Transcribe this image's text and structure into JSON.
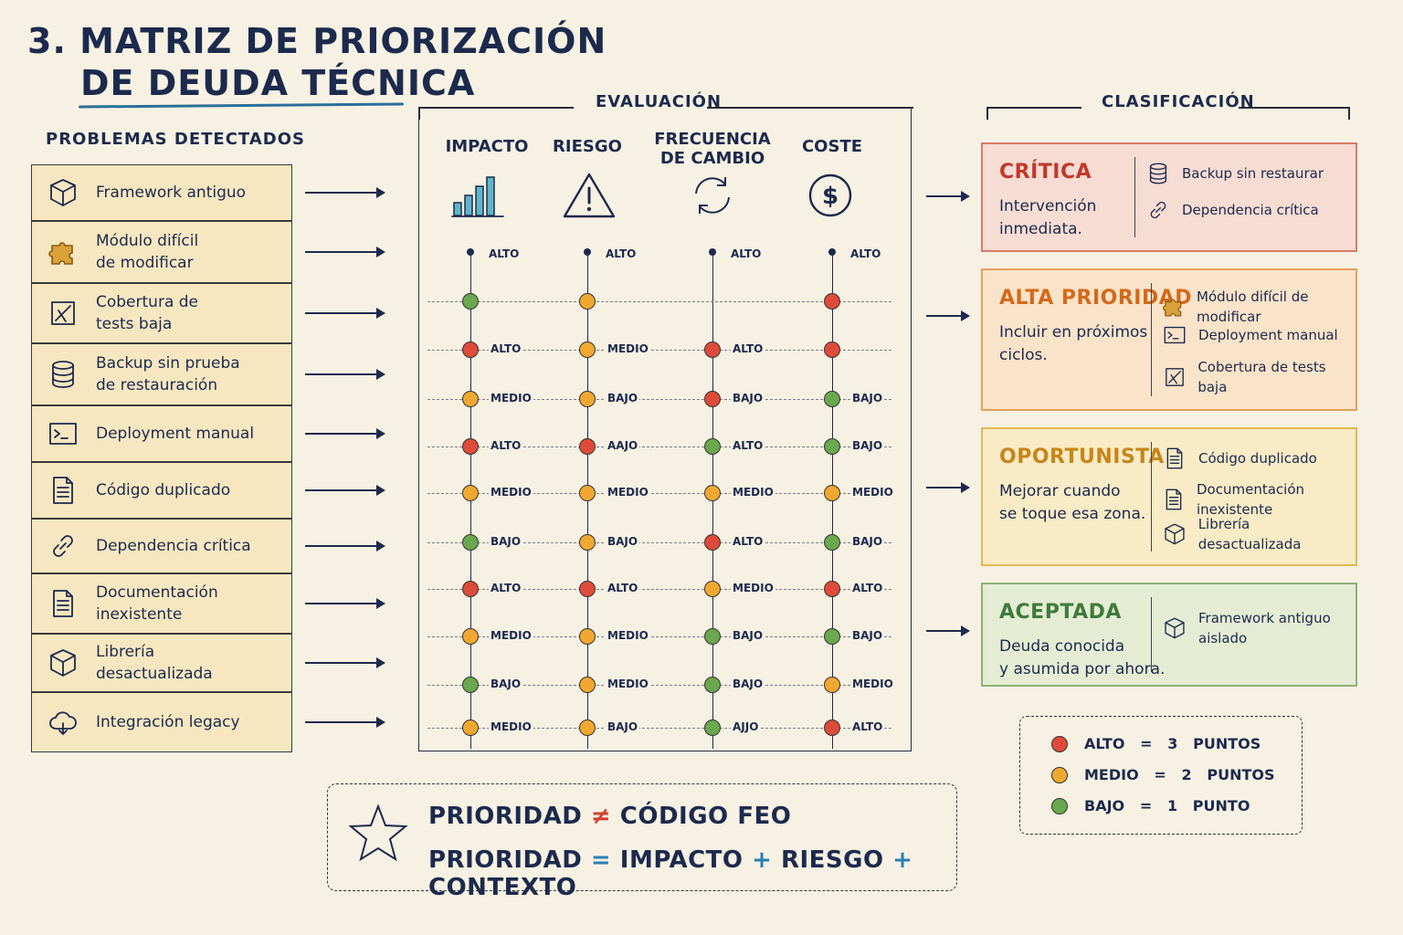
{
  "title": {
    "line1": "3. MATRIZ DE PRIORIZACIÓN",
    "line2": "DE DEUDA TÉCNICA"
  },
  "problems": {
    "header": "PROBLEMAS DETECTADOS",
    "items": [
      {
        "label": "Framework antiguo",
        "icon": "box-icon"
      },
      {
        "label": "Módulo difícil\nde modificar",
        "icon": "puzzle-icon"
      },
      {
        "label": "Cobertura de\ntests baja",
        "icon": "test-icon"
      },
      {
        "label": "Backup sin prueba\nde restauración",
        "icon": "database-icon"
      },
      {
        "label": "Deployment manual",
        "icon": "terminal-icon"
      },
      {
        "label": "Código duplicado",
        "icon": "document-icon"
      },
      {
        "label": "Dependencia crítica",
        "icon": "link-icon"
      },
      {
        "label": "Documentación\ninexistente",
        "icon": "document-icon"
      },
      {
        "label": "Librería\ndesactualizada",
        "icon": "box-icon"
      },
      {
        "label": "Integración legacy",
        "icon": "cloud-icon"
      }
    ]
  },
  "evaluation": {
    "header": "EVALUACIÓN",
    "columns": [
      {
        "label": "IMPACTO",
        "icon": "bar-chart-icon"
      },
      {
        "label": "RIESGO",
        "icon": "warning-icon"
      },
      {
        "label": "FRECUENCIA\nDE CAMBIO",
        "icon": "refresh-icon"
      },
      {
        "label": "COSTE",
        "icon": "dollar-icon"
      }
    ],
    "top_label": "ALTO",
    "rows": [
      [
        {
          "level": "",
          "color": "g"
        },
        {
          "level": "",
          "color": "o"
        },
        {
          "level": "",
          "color": ""
        },
        {
          "level": "",
          "color": "r"
        }
      ],
      [
        {
          "level": "ALTO",
          "color": "r"
        },
        {
          "level": "MEDIO",
          "color": "o"
        },
        {
          "level": "ALTO",
          "color": "r"
        },
        {
          "level": "",
          "color": "r"
        }
      ],
      [
        {
          "level": "MEDIO",
          "color": "o"
        },
        {
          "level": "BAJO",
          "color": "o"
        },
        {
          "level": "BAJO",
          "color": "r"
        },
        {
          "level": "BAJO",
          "color": "g"
        }
      ],
      [
        {
          "level": "ALTO",
          "color": "r"
        },
        {
          "level": "AAJO",
          "color": "r"
        },
        {
          "level": "ALTO",
          "color": "g"
        },
        {
          "level": "BAJO",
          "color": "g"
        }
      ],
      [
        {
          "level": "MEDIO",
          "color": "o"
        },
        {
          "level": "MEDIO",
          "color": "o"
        },
        {
          "level": "MEDIO",
          "color": "o"
        },
        {
          "level": "MEDIO",
          "color": "o"
        }
      ],
      [
        {
          "level": "BAJO",
          "color": "g"
        },
        {
          "level": "BAJO",
          "color": "o"
        },
        {
          "level": "ALTO",
          "color": "r"
        },
        {
          "level": "BAJO",
          "color": "g"
        }
      ],
      [
        {
          "level": "ALTO",
          "color": "r"
        },
        {
          "level": "ALTO",
          "color": "r"
        },
        {
          "level": "MEDIO",
          "color": "o"
        },
        {
          "level": "ALTO",
          "color": "r"
        }
      ],
      [
        {
          "level": "MEDIO",
          "color": "o"
        },
        {
          "level": "MEDIO",
          "color": "o"
        },
        {
          "level": "BAJO",
          "color": "g"
        },
        {
          "level": "BAJO",
          "color": "g"
        }
      ],
      [
        {
          "level": "BAJO",
          "color": "g"
        },
        {
          "level": "MEDIO",
          "color": "o"
        },
        {
          "level": "BAJO",
          "color": "g"
        },
        {
          "level": "MEDIO",
          "color": "o"
        }
      ],
      [
        {
          "level": "MEDIO",
          "color": "o"
        },
        {
          "level": "BAJO",
          "color": "o"
        },
        {
          "level": "AJJO",
          "color": "g"
        },
        {
          "level": "ALTO",
          "color": "r"
        }
      ]
    ]
  },
  "classification": {
    "header": "CLASIFICACIÓN",
    "categories": [
      {
        "name": "CRÍTICA",
        "desc": "Intervención\ninmediata.",
        "color": "#c0392b",
        "bg": "#f6dcd3",
        "border": "#d97a6a",
        "items": [
          {
            "label": "Backup sin restaurar",
            "icon": "database-icon"
          },
          {
            "label": "Dependencia crítica",
            "icon": "link-icon"
          }
        ]
      },
      {
        "name": "ALTA PRIORIDAD",
        "desc": "Incluir en próximos\nciclos.",
        "color": "#d4691a",
        "bg": "#f9e3c9",
        "border": "#e7a05a",
        "items": [
          {
            "label": "Módulo difícil de modificar",
            "icon": "puzzle-icon"
          },
          {
            "label": "Deployment manual",
            "icon": "terminal-icon"
          },
          {
            "label": "Cobertura de tests baja",
            "icon": "test-icon"
          }
        ]
      },
      {
        "name": "OPORTUNISTA",
        "desc": "Mejorar cuando\nse toque esa zona.",
        "color": "#c7861a",
        "bg": "#f8ebc6",
        "border": "#e2b856",
        "items": [
          {
            "label": "Código duplicado",
            "icon": "document-icon"
          },
          {
            "label": "Documentación inexistente",
            "icon": "document-icon"
          },
          {
            "label": "Librería desactualizada",
            "icon": "box-icon"
          }
        ]
      },
      {
        "name": "ACEPTADA",
        "desc": "Deuda conocida\ny asumida por ahora.",
        "color": "#3f7a3a",
        "bg": "#e4ecd4",
        "border": "#8fb07a",
        "items": [
          {
            "label": "Framework antiguo\naislado",
            "icon": "box-icon"
          }
        ]
      }
    ]
  },
  "legend": [
    {
      "label": "ALTO   =   3   PUNTOS",
      "color": "r"
    },
    {
      "label": "MEDIO   =   2   PUNTOS",
      "color": "o"
    },
    {
      "label": "BAJO   =   1   PUNTO",
      "color": "g"
    }
  ],
  "formula": {
    "l1_a": "PRIORIDAD",
    "l1_op": "≠",
    "l1_b": "CÓDIGO  FEO",
    "l2_a": "PRIORIDAD",
    "l2_eq": "=",
    "l2_b": "IMPACTO",
    "l2_p1": "+",
    "l2_c": "RIESGO",
    "l2_p2": "+",
    "l2_d": "CONTEXTO"
  }
}
